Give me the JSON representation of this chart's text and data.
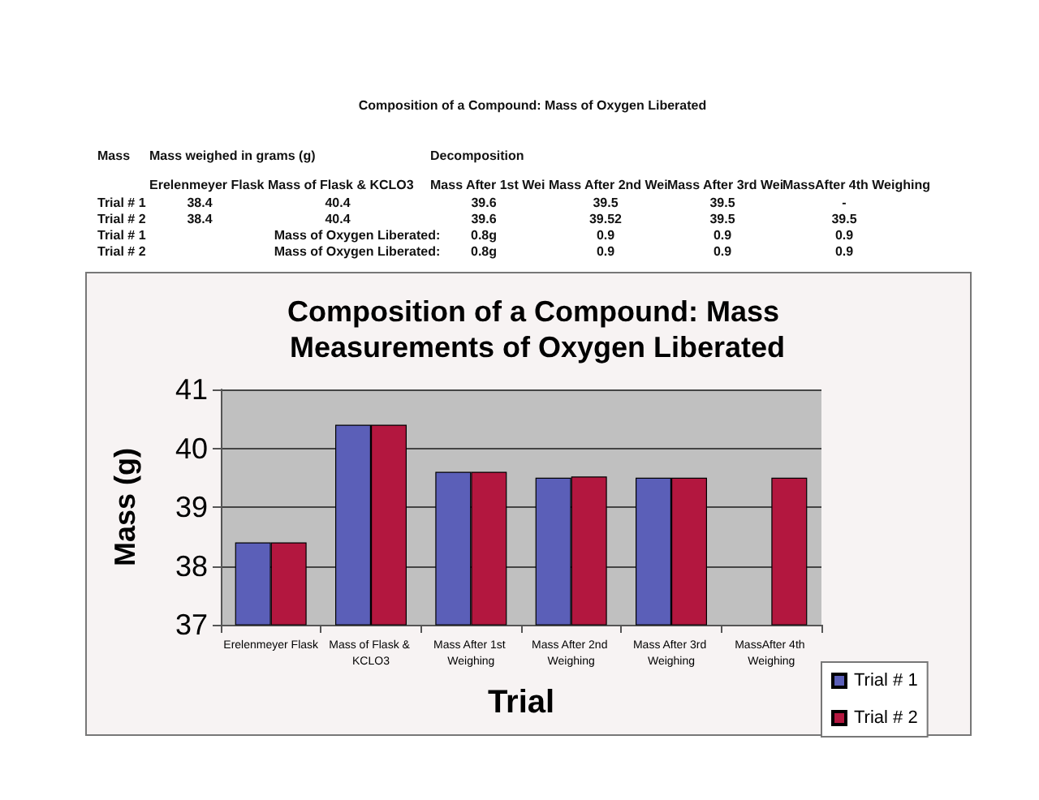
{
  "chart_data": {
    "type": "bar",
    "title": "Composition of a Compound: Mass Measurements of Oxygen Liberated",
    "xlabel": "Trial",
    "ylabel": "Mass (g)",
    "categories": [
      "Erelenmeyer Flask",
      "Mass of Flask & KCLO3",
      "Mass After 1st Weighing",
      "Mass After 2nd Weighing",
      "Mass After 3rd Weighing",
      "MassAfter 4th Weighing"
    ],
    "series": [
      {
        "name": "Trial # 1",
        "color": "#5b5fb8",
        "values": [
          38.4,
          40.4,
          39.6,
          39.5,
          39.5,
          null
        ]
      },
      {
        "name": "Trial # 2",
        "color": "#b3173f",
        "values": [
          38.4,
          40.4,
          39.6,
          39.52,
          39.5,
          39.5
        ]
      }
    ],
    "ylim": [
      37,
      41
    ],
    "yticks": [
      37,
      38,
      39,
      40,
      41
    ],
    "grid": "y",
    "legend": "right",
    "annotations": [
      "Composition of a Compound: Mass of Oxygen Liberated",
      "Mass",
      "Mass weighed in grams (g)",
      "Decomposition",
      "Erelenmeyer Flask",
      "Mass of Flask & KCLO3",
      "Mass After 1st Wei",
      "Mass After 2nd Wei",
      "Mass After 3rd Wei",
      "MassAfter 4th Weighing",
      "Trial # 1",
      "38.4",
      "40.4",
      "39.6",
      "39.5",
      "39.5",
      "-",
      "Trial # 2",
      "38.4",
      "40.4",
      "39.6",
      "39.52",
      "39.5",
      "39.5",
      "Trial # 1",
      "Mass of Oxygen Liberated:",
      "0.8g",
      "0.9",
      "0.9",
      "0.9",
      "Trial # 2",
      "Mass of Oxygen Liberated:",
      "0.8g",
      "0.9",
      "0.9",
      "0.9"
    ]
  }
}
